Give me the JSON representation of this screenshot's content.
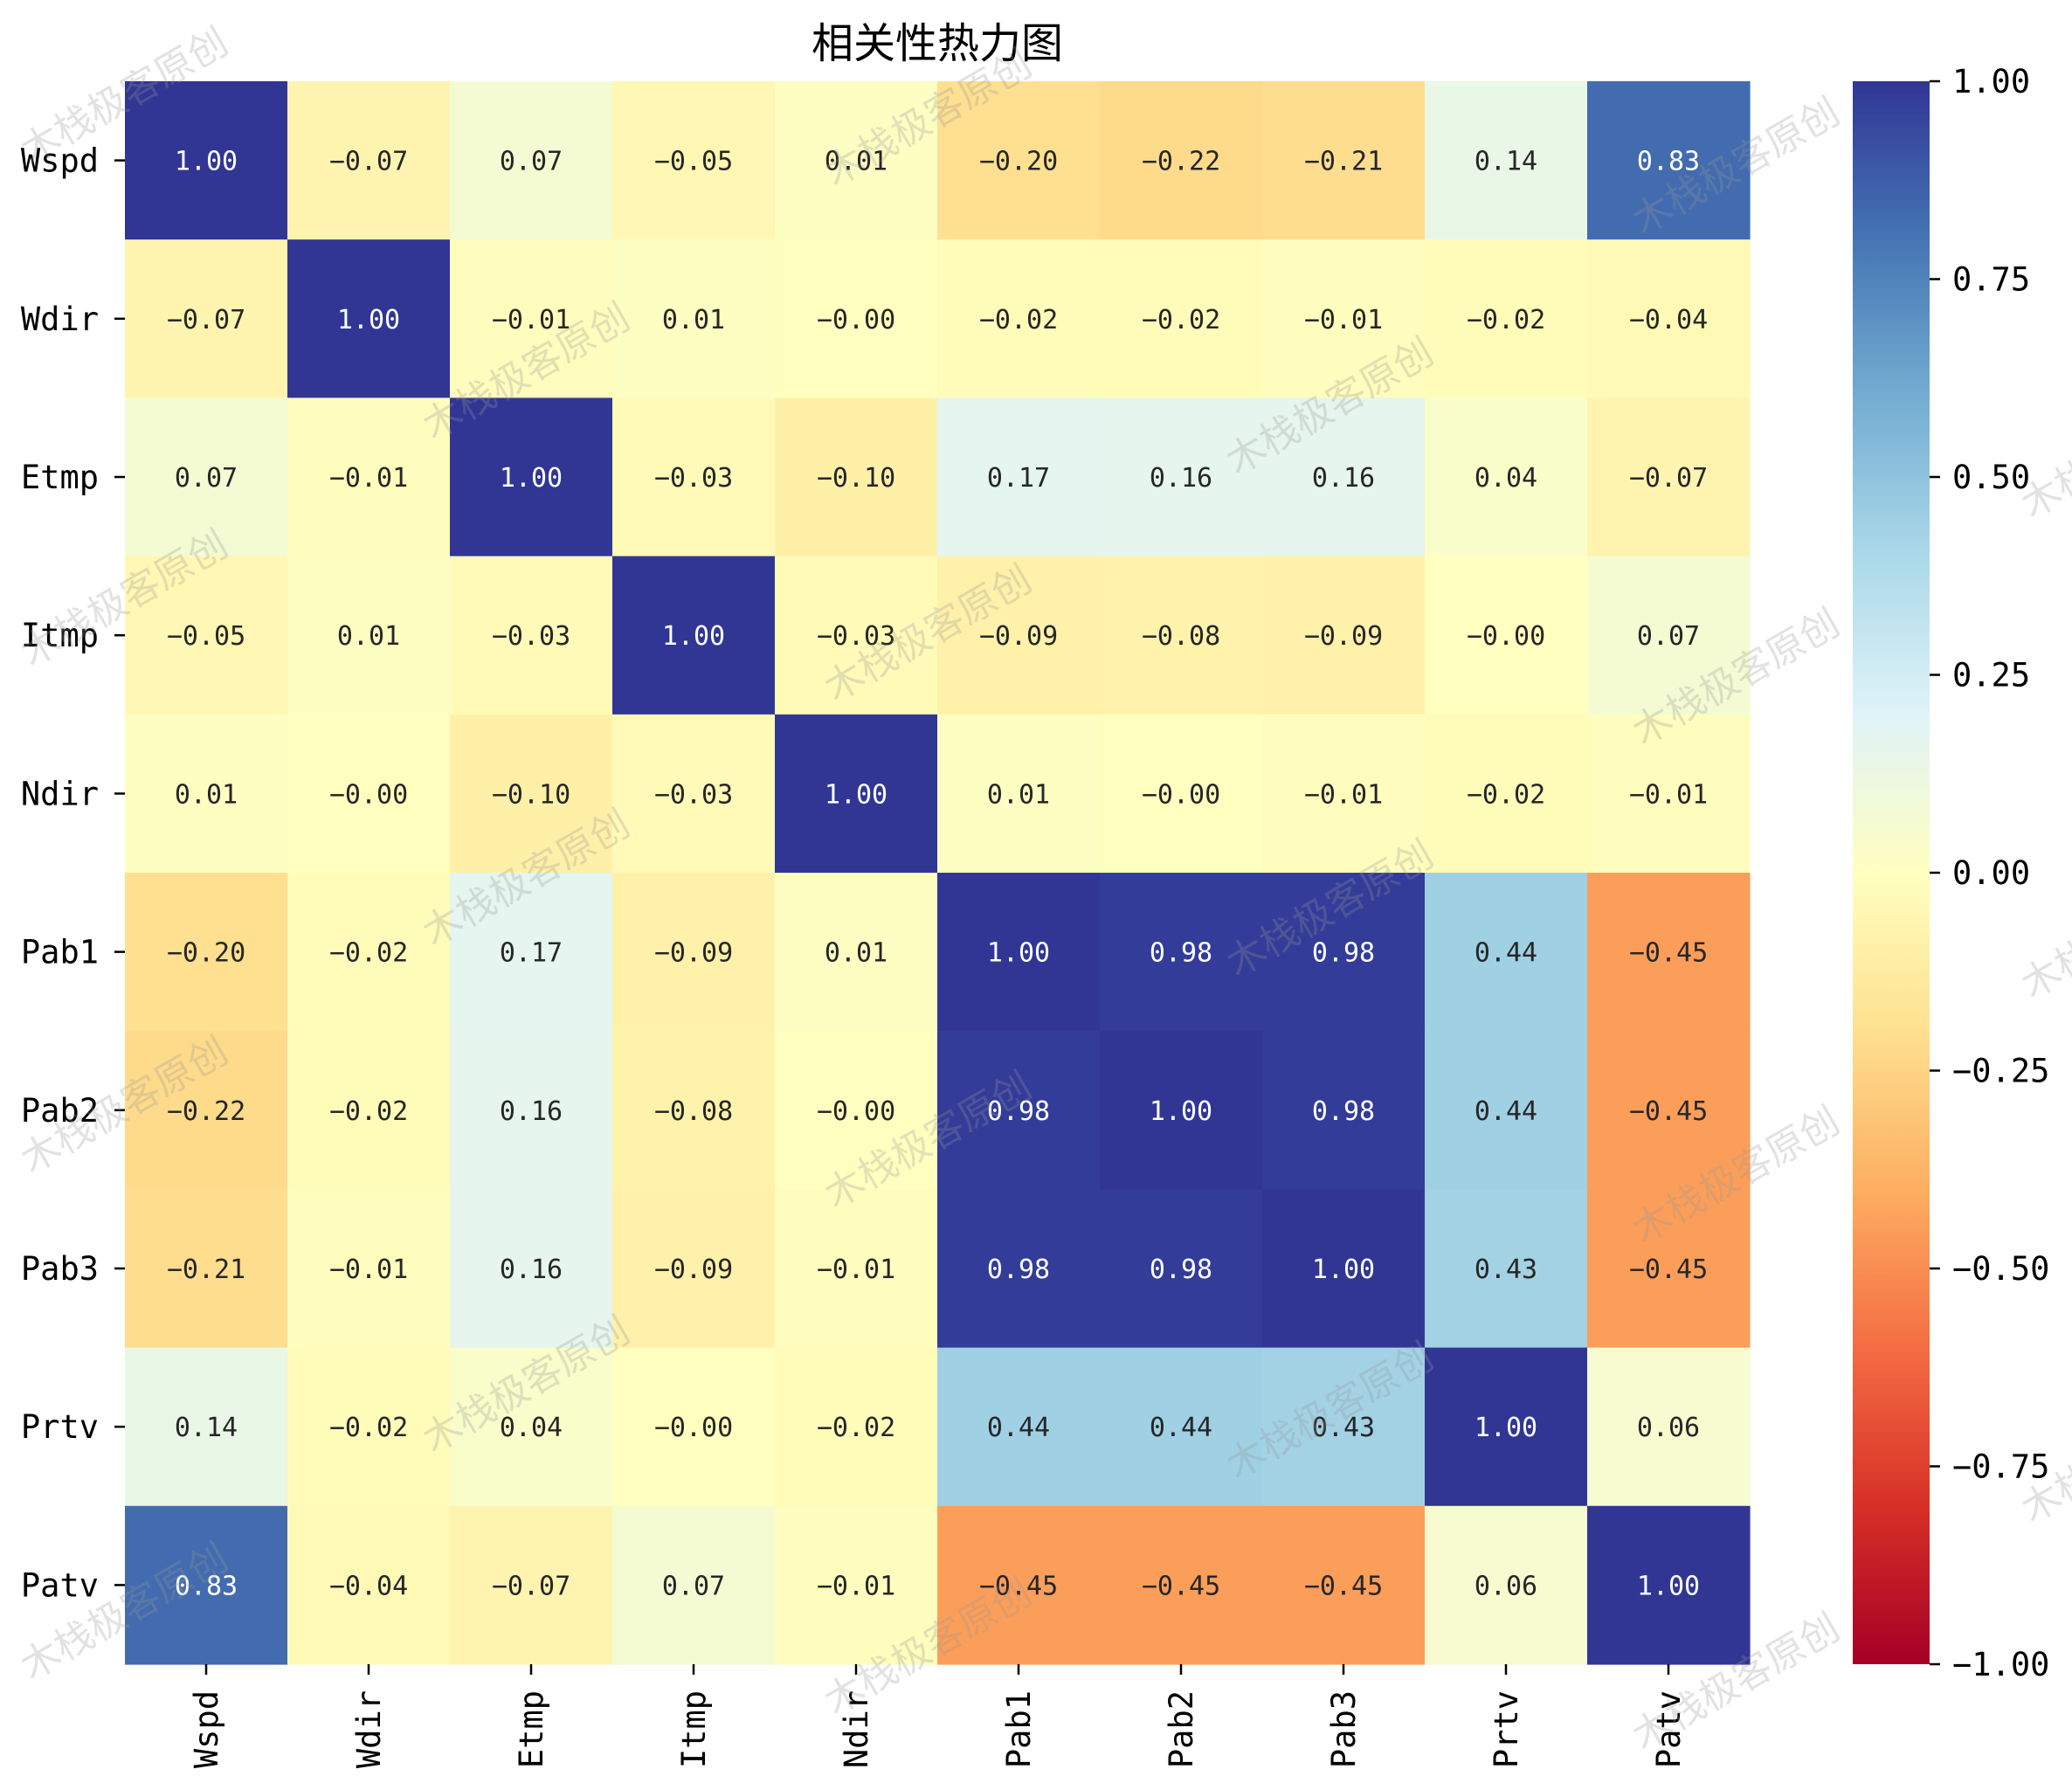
{
  "chart_data": {
    "type": "heatmap",
    "title": "相关性热力图",
    "xlabel": "",
    "ylabel": "",
    "x_labels": [
      "Wspd",
      "Wdir",
      "Etmp",
      "Itmp",
      "Ndir",
      "Pab1",
      "Pab2",
      "Pab3",
      "Prtv",
      "Patv"
    ],
    "y_labels": [
      "Wspd",
      "Wdir",
      "Etmp",
      "Itmp",
      "Ndir",
      "Pab1",
      "Pab2",
      "Pab3",
      "Prtv",
      "Patv"
    ],
    "values": [
      [
        1.0,
        -0.07,
        0.07,
        -0.05,
        0.01,
        -0.2,
        -0.22,
        -0.21,
        0.14,
        0.83
      ],
      [
        -0.07,
        1.0,
        -0.01,
        0.01,
        -0.0,
        -0.02,
        -0.02,
        -0.01,
        -0.02,
        -0.04
      ],
      [
        0.07,
        -0.01,
        1.0,
        -0.03,
        -0.1,
        0.17,
        0.16,
        0.16,
        0.04,
        -0.07
      ],
      [
        -0.05,
        0.01,
        -0.03,
        1.0,
        -0.03,
        -0.09,
        -0.08,
        -0.09,
        -0.0,
        0.07
      ],
      [
        0.01,
        -0.0,
        -0.1,
        -0.03,
        1.0,
        0.01,
        -0.0,
        -0.01,
        -0.02,
        -0.01
      ],
      [
        -0.2,
        -0.02,
        0.17,
        -0.09,
        0.01,
        1.0,
        0.98,
        0.98,
        0.44,
        -0.45
      ],
      [
        -0.22,
        -0.02,
        0.16,
        -0.08,
        -0.0,
        0.98,
        1.0,
        0.98,
        0.44,
        -0.45
      ],
      [
        -0.21,
        -0.01,
        0.16,
        -0.09,
        -0.01,
        0.98,
        0.98,
        1.0,
        0.43,
        -0.45
      ],
      [
        0.14,
        -0.02,
        0.04,
        -0.0,
        -0.02,
        0.44,
        0.44,
        0.43,
        1.0,
        0.06
      ],
      [
        0.83,
        -0.04,
        -0.07,
        0.07,
        -0.01,
        -0.45,
        -0.45,
        -0.45,
        0.06,
        1.0
      ]
    ],
    "value_format": "0.00",
    "colormap": "RdYlBu",
    "vmin": -1.0,
    "vmax": 1.0,
    "colorbar_ticks": [
      "1.00",
      "0.75",
      "0.50",
      "0.25",
      "0.00",
      "−0.25",
      "−0.50",
      "−0.75",
      "−1.00"
    ],
    "colorbar_tick_values": [
      1.0,
      0.75,
      0.5,
      0.25,
      0.0,
      -0.25,
      -0.5,
      -0.75,
      -1.0
    ],
    "legend": "colorbar-right",
    "grid": false
  },
  "watermark": "木栈极客原创"
}
